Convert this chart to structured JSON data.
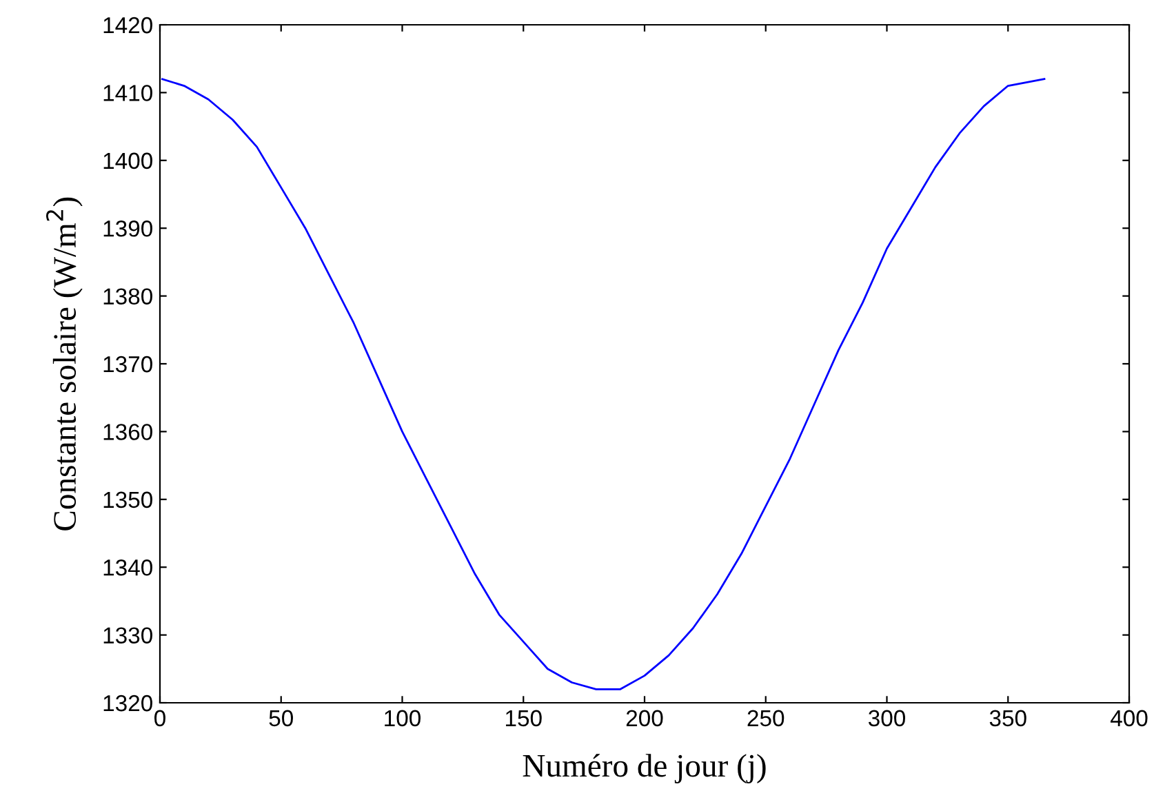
{
  "chart_data": {
    "type": "line",
    "xlabel": "Numéro de jour (j)",
    "ylabel": "Constante solaire (W/m$^{2}$)",
    "x": [
      1,
      10,
      20,
      30,
      40,
      50,
      60,
      70,
      80,
      90,
      100,
      110,
      120,
      130,
      140,
      150,
      160,
      170,
      180,
      190,
      200,
      210,
      220,
      230,
      240,
      250,
      260,
      270,
      280,
      290,
      300,
      310,
      320,
      330,
      340,
      350,
      365
    ],
    "series": [
      {
        "color": "#0000ff",
        "values": [
          1412,
          1411,
          1409,
          1406,
          1402,
          1396,
          1390,
          1383,
          1376,
          1368,
          1360,
          1353,
          1346,
          1339,
          1333,
          1329,
          1325,
          1323,
          1322,
          1322,
          1324,
          1327,
          1331,
          1336,
          1342,
          1349,
          1356,
          1364,
          1372,
          1379,
          1387,
          1393,
          1399,
          1404,
          1408,
          1411,
          1412
        ]
      }
    ],
    "xlim": [
      0,
      400
    ],
    "xticks": [
      0,
      50,
      100,
      150,
      200,
      250,
      300,
      350,
      400
    ],
    "ylim": [
      1320,
      1420
    ],
    "yticks": [
      1320,
      1330,
      1340,
      1350,
      1360,
      1370,
      1380,
      1390,
      1400,
      1410,
      1420
    ],
    "grid": false,
    "legend": false,
    "marker": "none",
    "line_style": "solid"
  }
}
